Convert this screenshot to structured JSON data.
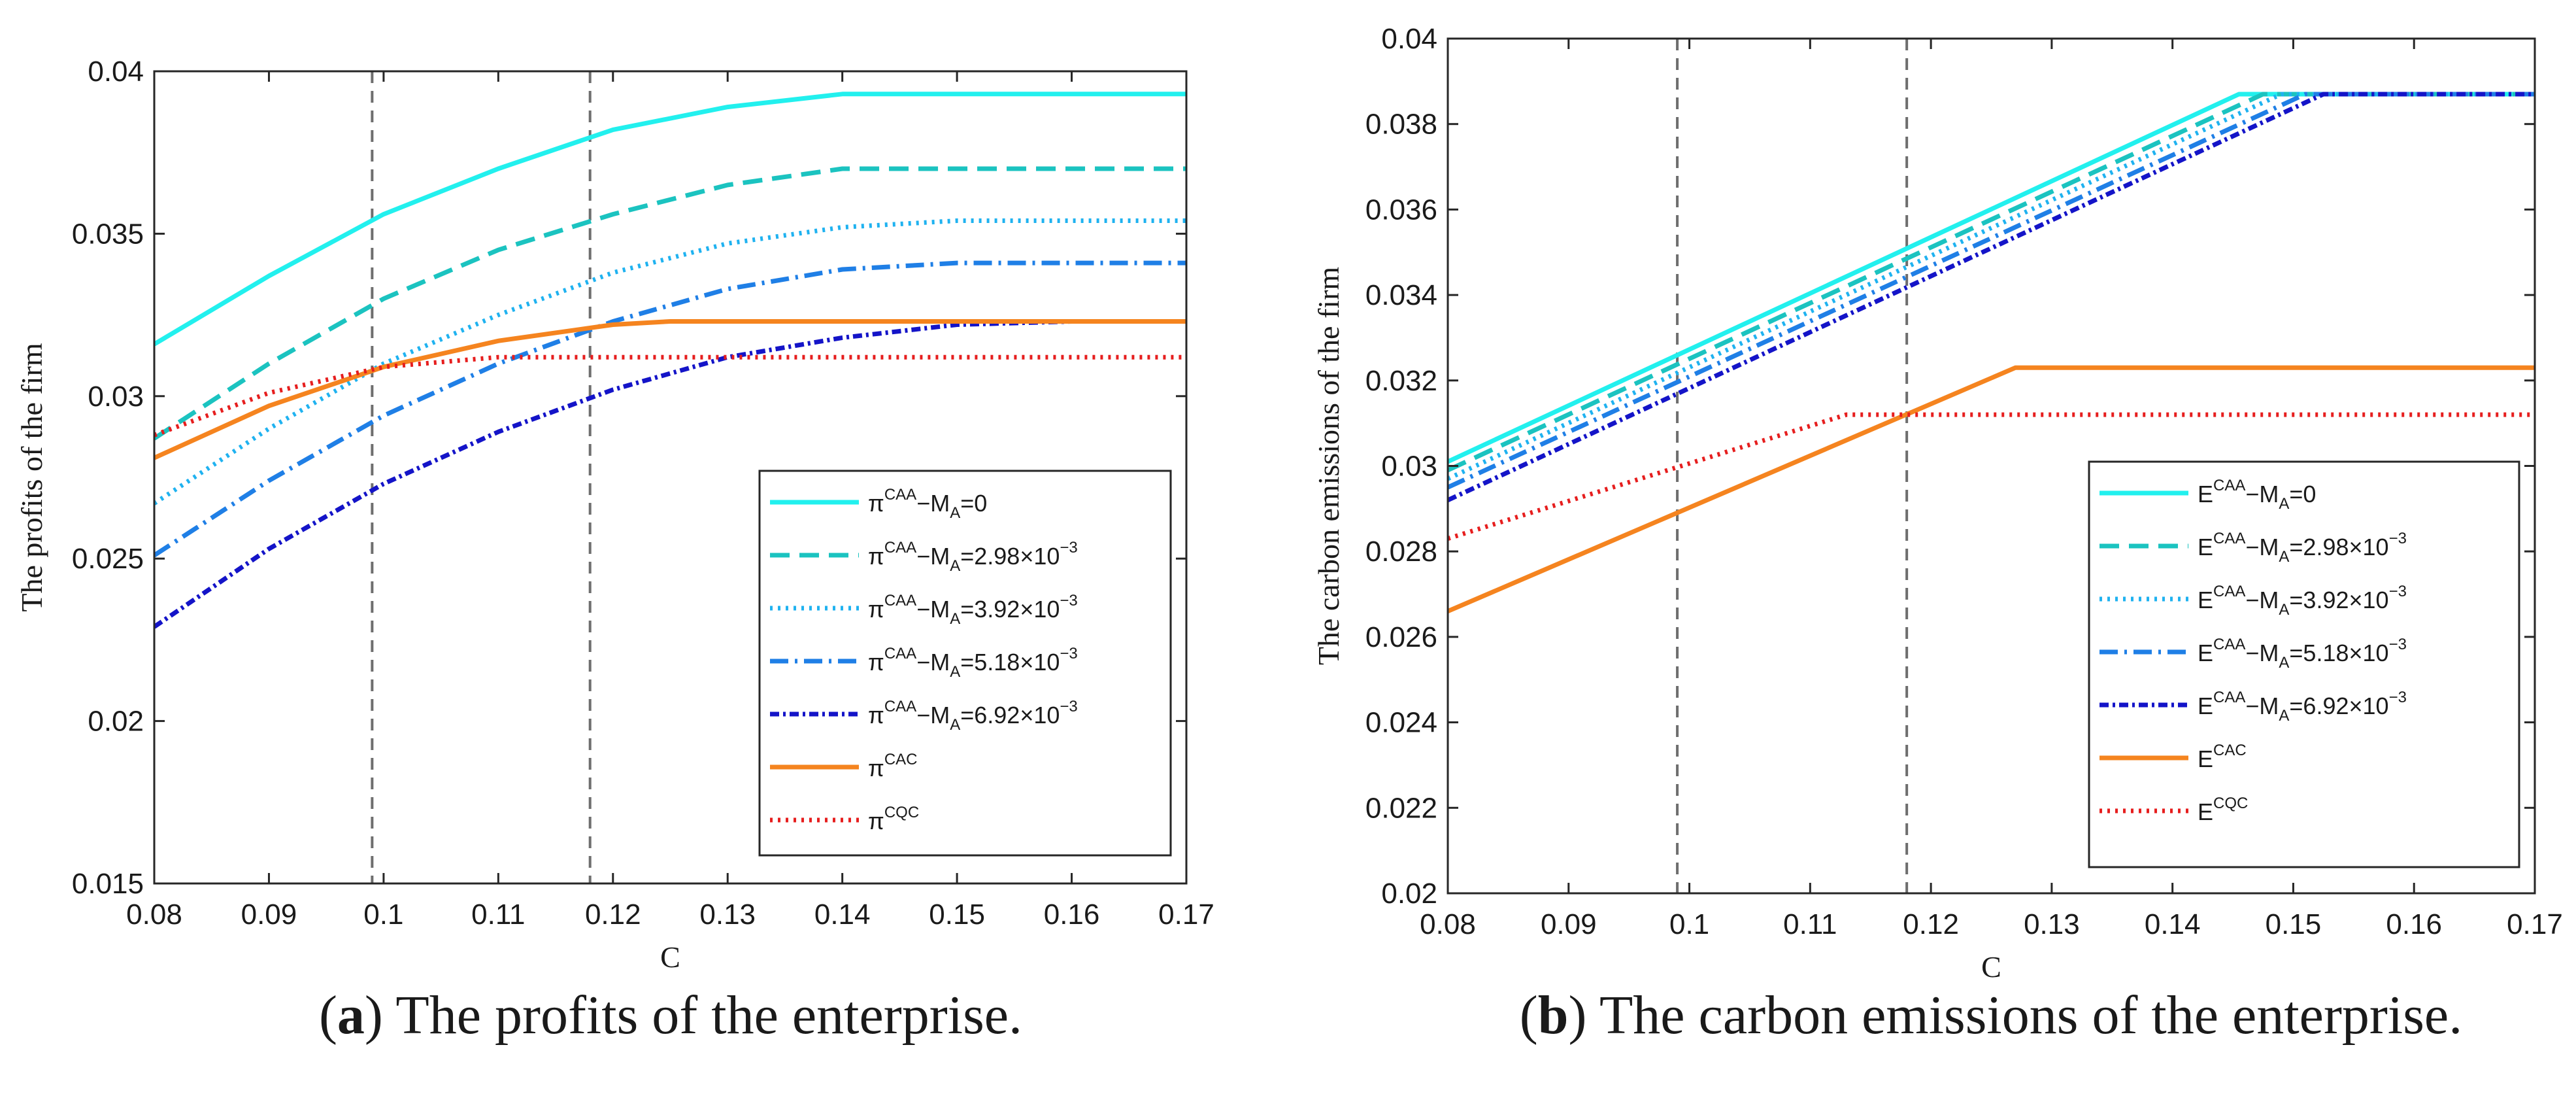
{
  "chart_data": [
    {
      "type": "line",
      "panel_label": "a",
      "caption": "The profits of the enterprise.",
      "xlabel": "C",
      "ylabel": "The profits of the firm",
      "xlim": [
        0.08,
        0.17
      ],
      "ylim": [
        0.015,
        0.04
      ],
      "xticks": [
        "0.08",
        "0.09",
        "0.1",
        "0.11",
        "0.12",
        "0.13",
        "0.14",
        "0.15",
        "0.16",
        "0.17"
      ],
      "yticks": [
        "0.015",
        "0.02",
        "0.025",
        "0.03",
        "0.035",
        "0.04"
      ],
      "vlines": [
        0.099,
        0.118
      ],
      "legend_position": "bottom-right",
      "series": [
        {
          "name": "πCAA−MA=0",
          "label_base": "π",
          "label_sup": "CAA",
          "label_rest": "−M",
          "label_sub": "A",
          "label_tail": "=0",
          "label_exp": "",
          "style": "solid",
          "color": "#22f0ee",
          "x": [
            0.08,
            0.09,
            0.1,
            0.11,
            0.12,
            0.13,
            0.14,
            0.15,
            0.16,
            0.17
          ],
          "y": [
            0.0316,
            0.0337,
            0.0356,
            0.037,
            0.0382,
            0.0389,
            0.0393,
            0.0393,
            0.0393,
            0.0393
          ]
        },
        {
          "name": "πCAA−MA=2.98×10−3",
          "label_base": "π",
          "label_sup": "CAA",
          "label_rest": "−M",
          "label_sub": "A",
          "label_tail": "=2.98×10",
          "label_exp": "−3",
          "style": "dashed",
          "color": "#1bc3c0",
          "x": [
            0.08,
            0.09,
            0.1,
            0.11,
            0.12,
            0.13,
            0.14,
            0.15,
            0.16,
            0.17
          ],
          "y": [
            0.0287,
            0.031,
            0.033,
            0.0345,
            0.0356,
            0.0365,
            0.037,
            0.037,
            0.037,
            0.037
          ]
        },
        {
          "name": "πCAA−MA=3.92×10−3",
          "label_base": "π",
          "label_sup": "CAA",
          "label_rest": "−M",
          "label_sub": "A",
          "label_tail": "=3.92×10",
          "label_exp": "−3",
          "style": "dotted",
          "color": "#1fb2f0",
          "x": [
            0.08,
            0.09,
            0.1,
            0.11,
            0.12,
            0.13,
            0.14,
            0.15,
            0.16,
            0.17
          ],
          "y": [
            0.0267,
            0.029,
            0.031,
            0.0325,
            0.0338,
            0.0347,
            0.0352,
            0.0354,
            0.0354,
            0.0354
          ]
        },
        {
          "name": "πCAA−MA=5.18×10−3",
          "label_base": "π",
          "label_sup": "CAA",
          "label_rest": "−M",
          "label_sub": "A",
          "label_tail": "=5.18×10",
          "label_exp": "−3",
          "style": "dashdot",
          "color": "#1f7fe6",
          "x": [
            0.08,
            0.09,
            0.1,
            0.11,
            0.12,
            0.13,
            0.14,
            0.15,
            0.16,
            0.17
          ],
          "y": [
            0.0251,
            0.0274,
            0.0294,
            0.031,
            0.0323,
            0.0333,
            0.0339,
            0.0341,
            0.0341,
            0.0341
          ]
        },
        {
          "name": "πCAA−MA=6.92×10−3",
          "label_base": "π",
          "label_sup": "CAA",
          "label_rest": "−M",
          "label_sub": "A",
          "label_tail": "=6.92×10",
          "label_exp": "−3",
          "style": "dashdot-dense",
          "color": "#1414c8",
          "x": [
            0.08,
            0.09,
            0.1,
            0.11,
            0.12,
            0.13,
            0.14,
            0.15,
            0.16,
            0.17
          ],
          "y": [
            0.0229,
            0.0253,
            0.0273,
            0.0289,
            0.0302,
            0.0312,
            0.0318,
            0.0322,
            0.0323,
            0.0323
          ]
        },
        {
          "name": "πCAC",
          "label_base": "π",
          "label_sup": "CAC",
          "label_rest": "",
          "label_sub": "",
          "label_tail": "",
          "label_exp": "",
          "style": "solid",
          "color": "#f5841f",
          "x": [
            0.08,
            0.09,
            0.1,
            0.11,
            0.12,
            0.125,
            0.13,
            0.17
          ],
          "y": [
            0.0281,
            0.0297,
            0.0309,
            0.0317,
            0.0322,
            0.0323,
            0.0323,
            0.0323
          ]
        },
        {
          "name": "πCQC",
          "label_base": "π",
          "label_sup": "CQC",
          "label_rest": "",
          "label_sub": "",
          "label_tail": "",
          "label_exp": "",
          "style": "dotted",
          "color": "#e61e1e",
          "x": [
            0.08,
            0.09,
            0.1,
            0.11,
            0.113,
            0.17
          ],
          "y": [
            0.0288,
            0.0301,
            0.0309,
            0.0312,
            0.0312,
            0.0312
          ]
        }
      ]
    },
    {
      "type": "line",
      "panel_label": "b",
      "caption": "The carbon emissions of the enterprise.",
      "xlabel": "C",
      "ylabel": "The carbon emissions of the firm",
      "xlim": [
        0.08,
        0.17
      ],
      "ylim": [
        0.02,
        0.04
      ],
      "xticks": [
        "0.08",
        "0.09",
        "0.1",
        "0.11",
        "0.12",
        "0.13",
        "0.14",
        "0.15",
        "0.16",
        "0.17"
      ],
      "yticks": [
        "0.02",
        "0.022",
        "0.024",
        "0.026",
        "0.028",
        "0.03",
        "0.032",
        "0.034",
        "0.036",
        "0.038",
        "0.04"
      ],
      "vlines": [
        0.099,
        0.118
      ],
      "legend_position": "bottom-right",
      "series": [
        {
          "name": "ECAA−MA=0",
          "label_base": "E",
          "label_sup": "CAA",
          "label_rest": "−M",
          "label_sub": "A",
          "label_tail": "=0",
          "label_exp": "",
          "style": "solid",
          "color": "#22f0ee",
          "x": [
            0.08,
            0.1455,
            0.17
          ],
          "y": [
            0.0301,
            0.0387,
            0.0387
          ]
        },
        {
          "name": "ECAA−MA=2.98×10−3",
          "label_base": "E",
          "label_sup": "CAA",
          "label_rest": "−M",
          "label_sub": "A",
          "label_tail": "=2.98×10",
          "label_exp": "−3",
          "style": "dashed",
          "color": "#1bc3c0",
          "x": [
            0.08,
            0.1475,
            0.17
          ],
          "y": [
            0.0299,
            0.0387,
            0.0387
          ]
        },
        {
          "name": "ECAA−MA=3.92×10−3",
          "label_base": "E",
          "label_sup": "CAA",
          "label_rest": "−M",
          "label_sub": "A",
          "label_tail": "=3.92×10",
          "label_exp": "−3",
          "style": "dotted",
          "color": "#1fb2f0",
          "x": [
            0.08,
            0.149,
            0.17
          ],
          "y": [
            0.0297,
            0.0387,
            0.0387
          ]
        },
        {
          "name": "ECAA−MA=5.18×10−3",
          "label_base": "E",
          "label_sup": "CAA",
          "label_rest": "−M",
          "label_sub": "A",
          "label_tail": "=5.18×10",
          "label_exp": "−3",
          "style": "dashdot",
          "color": "#1f7fe6",
          "x": [
            0.08,
            0.151,
            0.17
          ],
          "y": [
            0.0295,
            0.0387,
            0.0387
          ]
        },
        {
          "name": "ECAA−MA=6.92×10−3",
          "label_base": "E",
          "label_sup": "CAA",
          "label_rest": "−M",
          "label_sub": "A",
          "label_tail": "=6.92×10",
          "label_exp": "−3",
          "style": "dashdot-dense",
          "color": "#1414c8",
          "x": [
            0.08,
            0.1525,
            0.17
          ],
          "y": [
            0.0292,
            0.0387,
            0.0387
          ]
        },
        {
          "name": "ECAC",
          "label_base": "E",
          "label_sup": "CAC",
          "label_rest": "",
          "label_sub": "",
          "label_tail": "",
          "label_exp": "",
          "style": "solid",
          "color": "#f5841f",
          "x": [
            0.08,
            0.127,
            0.17
          ],
          "y": [
            0.0266,
            0.0323,
            0.0323
          ]
        },
        {
          "name": "ECQC",
          "label_base": "E",
          "label_sup": "CQC",
          "label_rest": "",
          "label_sub": "",
          "label_tail": "",
          "label_exp": "",
          "style": "dotted",
          "color": "#e61e1e",
          "x": [
            0.08,
            0.113,
            0.17
          ],
          "y": [
            0.0283,
            0.0312,
            0.0312
          ]
        }
      ]
    }
  ]
}
